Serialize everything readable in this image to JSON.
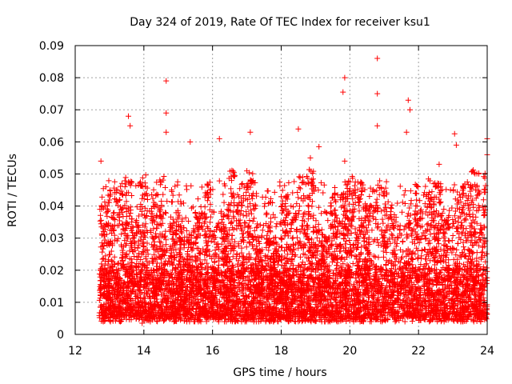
{
  "chart_data": {
    "type": "scatter",
    "title": "Day 324 of 2019, Rate Of TEC Index for receiver ksu1",
    "xlabel": "GPS time / hours",
    "ylabel": "ROTI / TECUs",
    "xlim": [
      12,
      24
    ],
    "ylim": [
      0,
      0.09
    ],
    "xticks": [
      12,
      14,
      16,
      18,
      20,
      22,
      24
    ],
    "xtick_labels": [
      "12",
      "14",
      "16",
      "18",
      "20",
      "22",
      "24"
    ],
    "yticks": [
      0,
      0.01,
      0.02,
      0.03,
      0.04,
      0.05,
      0.06,
      0.07,
      0.08,
      0.09
    ],
    "ytick_labels": [
      "0",
      "0.01",
      "0.02",
      "0.03",
      "0.04",
      "0.05",
      "0.06",
      "0.07",
      "0.08",
      "0.09"
    ],
    "grid": true,
    "marker": "+",
    "marker_color": "#ff0000",
    "series": [
      {
        "name": "ROTI",
        "x_range": [
          12.7,
          24.0
        ],
        "typical_band": [
          0.005,
          0.02
        ],
        "notable_points": [
          {
            "x": 12.75,
            "y": 0.054
          },
          {
            "x": 13.55,
            "y": 0.068
          },
          {
            "x": 13.6,
            "y": 0.065
          },
          {
            "x": 13.95,
            "y": 0.0035
          },
          {
            "x": 14.65,
            "y": 0.079
          },
          {
            "x": 14.65,
            "y": 0.069
          },
          {
            "x": 14.65,
            "y": 0.063
          },
          {
            "x": 15.35,
            "y": 0.06
          },
          {
            "x": 16.2,
            "y": 0.061
          },
          {
            "x": 17.1,
            "y": 0.063
          },
          {
            "x": 18.5,
            "y": 0.064
          },
          {
            "x": 18.85,
            "y": 0.055
          },
          {
            "x": 19.1,
            "y": 0.0585
          },
          {
            "x": 19.85,
            "y": 0.08
          },
          {
            "x": 19.8,
            "y": 0.0755
          },
          {
            "x": 19.85,
            "y": 0.054
          },
          {
            "x": 20.8,
            "y": 0.086
          },
          {
            "x": 20.8,
            "y": 0.075
          },
          {
            "x": 20.8,
            "y": 0.065
          },
          {
            "x": 21.7,
            "y": 0.073
          },
          {
            "x": 21.75,
            "y": 0.07
          },
          {
            "x": 21.65,
            "y": 0.063
          },
          {
            "x": 22.6,
            "y": 0.053
          },
          {
            "x": 23.05,
            "y": 0.0625
          },
          {
            "x": 23.1,
            "y": 0.059
          },
          {
            "x": 24.0,
            "y": 0.061
          },
          {
            "x": 24.0,
            "y": 0.056
          }
        ]
      }
    ]
  }
}
